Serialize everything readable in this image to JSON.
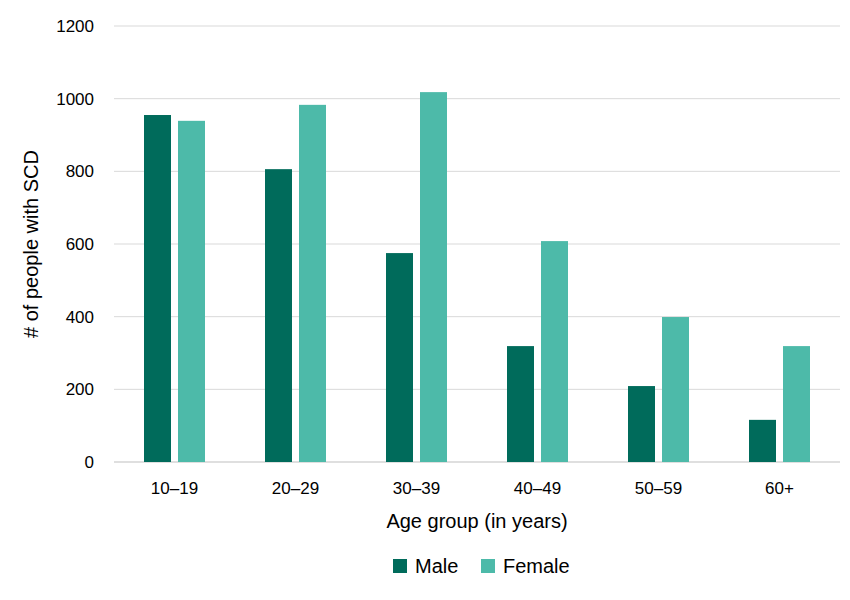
{
  "chart_data": {
    "type": "bar",
    "x_label": "Age group (in years)",
    "y_label": "# of people with SCD",
    "categories": [
      "10–19",
      "20–29",
      "30–39",
      "40–49",
      "50–59",
      "60+"
    ],
    "series": [
      {
        "name": "Male",
        "color": "#006b5b",
        "values": [
          955,
          806,
          575,
          319,
          209,
          116
        ]
      },
      {
        "name": "Female",
        "color": "#4dbaa9",
        "values": [
          939,
          983,
          1018,
          608,
          399,
          319
        ]
      }
    ],
    "ylim": [
      0,
      1200
    ],
    "yticks": [
      0,
      200,
      400,
      600,
      800,
      1000,
      1200
    ],
    "grid": true,
    "legend": "bottom"
  }
}
